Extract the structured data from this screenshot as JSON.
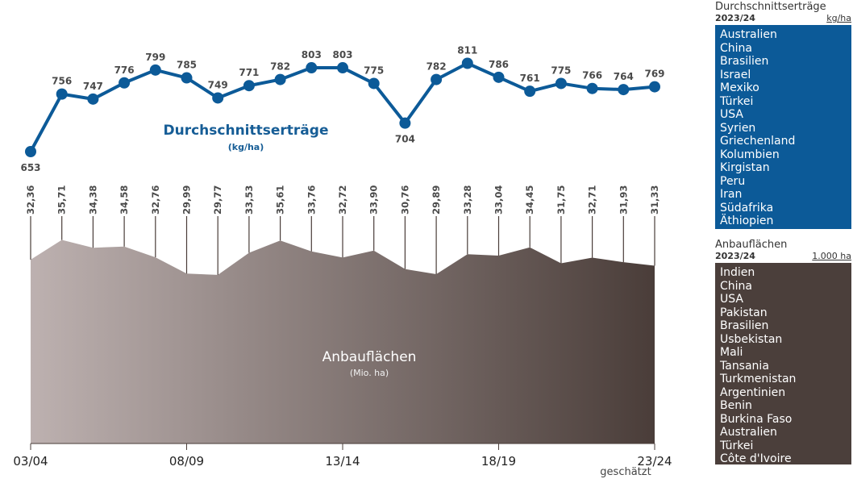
{
  "chart_data": {
    "type": "line+area",
    "x": [
      "03/04",
      "04/05",
      "05/06",
      "06/07",
      "07/08",
      "08/09",
      "09/10",
      "10/11",
      "11/12",
      "12/13",
      "13/14",
      "14/15",
      "15/16",
      "16/17",
      "17/18",
      "18/19",
      "19/20",
      "20/21",
      "21/22",
      "22/23",
      "23/24"
    ],
    "x_tick_labels": [
      "03/04",
      "08/09",
      "13/14",
      "18/19",
      "23/24"
    ],
    "x_note": "geschätzt",
    "yield": {
      "title": "Durchschnittserträge",
      "unit": "(kg/ha)",
      "values": [
        653,
        756,
        747,
        776,
        799,
        785,
        749,
        771,
        782,
        803,
        803,
        775,
        704,
        782,
        811,
        786,
        761,
        775,
        766,
        764,
        769
      ],
      "color": "#0c5a98"
    },
    "area": {
      "title": "Anbauflächen",
      "unit": "(Mio. ha)",
      "values": [
        32.36,
        35.71,
        34.38,
        34.58,
        32.76,
        29.99,
        29.77,
        33.53,
        35.61,
        33.76,
        32.72,
        33.9,
        30.76,
        29.89,
        33.28,
        33.04,
        34.45,
        31.75,
        32.71,
        31.93,
        31.33
      ],
      "labels": [
        "32,36",
        "35,71",
        "34,38",
        "34,58",
        "32,76",
        "29,99",
        "29,77",
        "33,53",
        "35,61",
        "33,76",
        "32,72",
        "33,90",
        "30,76",
        "29,89",
        "33,28",
        "33,04",
        "34,45",
        "31,75",
        "32,71",
        "31,93",
        "31,33"
      ],
      "color_start": "#bdb1b0",
      "color_end": "#4a3d39"
    }
  },
  "legend": {
    "yield": {
      "title": "Durchschnittserträge",
      "year": "2023/24",
      "unit": "kg/ha",
      "countries": [
        "Australien",
        "China",
        "Brasilien",
        "Israel",
        "Mexiko",
        "Türkei",
        "USA",
        "Syrien",
        "Griechenland",
        "Kolumbien",
        "Kirgistan",
        "Peru",
        "Iran",
        "Südafrika",
        "Äthiopien"
      ]
    },
    "area": {
      "title": "Anbauflächen",
      "year": "2023/24",
      "unit": "1.000 ha",
      "countries": [
        "Indien",
        "China",
        "USA",
        "Pakistan",
        "Brasilien",
        "Usbekistan",
        "Mali",
        "Tansania",
        "Turkmenistan",
        "Argentinien",
        "Benin",
        "Burkina Faso",
        "Australien",
        "Türkei",
        "Côte d'Ivoire"
      ]
    }
  }
}
